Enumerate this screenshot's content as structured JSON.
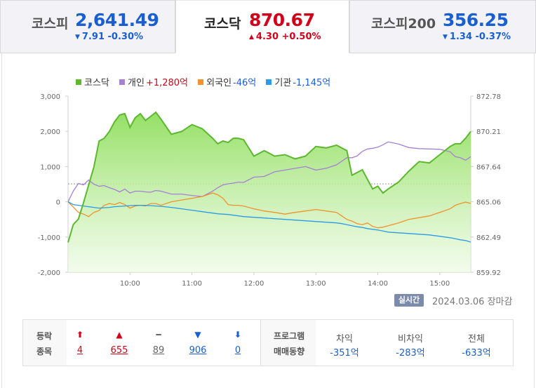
{
  "tabs": [
    {
      "name": "코스피",
      "value": "2,641.49",
      "change": "7.91",
      "change_pct": "-0.30%",
      "direction": "down",
      "arrow": "▼",
      "active": false
    },
    {
      "name": "코스닥",
      "value": "870.67",
      "change": "4.30",
      "change_pct": "+0.50%",
      "direction": "up",
      "arrow": "▲",
      "active": true
    },
    {
      "name": "코스피200",
      "value": "356.25",
      "change": "1.34",
      "change_pct": "-0.37%",
      "direction": "down",
      "arrow": "▼",
      "active": false
    }
  ],
  "legend": [
    {
      "label": "코스닥",
      "value": "",
      "color": "#5cb82e"
    },
    {
      "label": "개인",
      "value": "+1,280억",
      "color": "#a77fd6",
      "value_color": "#d0021b"
    },
    {
      "label": "외국인",
      "value": "-46억",
      "color": "#f0922d",
      "value_color": "#1a5fd1"
    },
    {
      "label": "기관",
      "value": "-1,145억",
      "color": "#2a9be8",
      "value_color": "#1a5fd1"
    }
  ],
  "realtime_badge": "실시간",
  "date_status": "2024.03.06 장마감",
  "chart_data": {
    "type": "area",
    "x_ticks": [
      "10:00",
      "11:00",
      "12:00",
      "13:00",
      "14:00",
      "15:00"
    ],
    "x_range": [
      "09:00",
      "15:30"
    ],
    "y_left": {
      "ticks": [
        "3,000",
        "2,000",
        "1,000",
        "0",
        "-1,000",
        "-2,000"
      ],
      "range": [
        -2000,
        3000
      ],
      "unit": "억"
    },
    "y_right": {
      "ticks": [
        "872.78",
        "870.21",
        "867.64",
        "865.06",
        "862.49",
        "859.92"
      ],
      "range": [
        859.92,
        872.78
      ]
    },
    "reference_line": {
      "axis": "right",
      "value": 866.37,
      "style": "dashed"
    },
    "times": [
      "09:00",
      "09:05",
      "09:10",
      "09:15",
      "09:20",
      "09:25",
      "09:30",
      "09:35",
      "09:40",
      "09:45",
      "09:50",
      "09:55",
      "10:00",
      "10:05",
      "10:10",
      "10:15",
      "10:20",
      "10:25",
      "10:30",
      "10:40",
      "10:50",
      "11:00",
      "11:10",
      "11:20",
      "11:25",
      "11:30",
      "11:35",
      "11:40",
      "11:45",
      "11:50",
      "12:00",
      "12:10",
      "12:20",
      "12:30",
      "12:40",
      "12:50",
      "13:00",
      "13:10",
      "13:20",
      "13:25",
      "13:30",
      "13:35",
      "13:40",
      "13:45",
      "13:50",
      "13:55",
      "14:00",
      "14:05",
      "14:10",
      "14:20",
      "14:30",
      "14:40",
      "14:50",
      "15:00",
      "15:10",
      "15:15",
      "15:20",
      "15:25",
      "15:30"
    ],
    "series": [
      {
        "name": "코스닥",
        "axis": "right",
        "color": "#5cb82e",
        "values": [
          862.1,
          863.4,
          863.8,
          865.0,
          866.3,
          867.6,
          869.5,
          869.7,
          870.2,
          870.9,
          871.4,
          871.5,
          870.5,
          871.2,
          871.5,
          871.0,
          871.3,
          871.6,
          871.1,
          870.0,
          870.2,
          870.7,
          870.4,
          869.7,
          869.3,
          869.5,
          869.4,
          869.7,
          869.7,
          869.6,
          868.4,
          868.8,
          868.4,
          868.5,
          868.2,
          868.4,
          869.1,
          869.0,
          869.2,
          869.0,
          868.8,
          867.0,
          867.2,
          867.4,
          866.7,
          866.0,
          866.2,
          865.7,
          866.0,
          866.5,
          867.3,
          868.0,
          867.9,
          868.5,
          869.1,
          869.3,
          869.3,
          869.7,
          870.2
        ]
      },
      {
        "name": "개인",
        "axis": "left",
        "color": "#a77fd6",
        "values": [
          0,
          300,
          520,
          480,
          620,
          500,
          440,
          460,
          400,
          350,
          280,
          360,
          250,
          300,
          300,
          280,
          270,
          320,
          300,
          220,
          220,
          180,
          150,
          300,
          400,
          480,
          510,
          530,
          560,
          550,
          700,
          720,
          850,
          900,
          950,
          1000,
          900,
          950,
          1050,
          1150,
          1250,
          1250,
          1300,
          1430,
          1500,
          1520,
          1550,
          1620,
          1700,
          1640,
          1540,
          1510,
          1500,
          1490,
          1420,
          1280,
          1250,
          1180,
          1280
        ]
      },
      {
        "name": "외국인",
        "axis": "left",
        "color": "#f0922d",
        "values": [
          0,
          -150,
          -300,
          -350,
          -420,
          -300,
          -250,
          -100,
          -50,
          -80,
          -20,
          -80,
          -180,
          -120,
          -100,
          -120,
          -50,
          -50,
          -100,
          0,
          50,
          100,
          150,
          250,
          200,
          100,
          -80,
          -100,
          -100,
          -120,
          -200,
          -260,
          -300,
          -350,
          -300,
          -260,
          -220,
          -260,
          -300,
          -400,
          -500,
          -550,
          -620,
          -650,
          -600,
          -700,
          -740,
          -720,
          -680,
          -600,
          -500,
          -450,
          -400,
          -300,
          -200,
          -100,
          -50,
          -10,
          -46
        ]
      },
      {
        "name": "기관",
        "axis": "left",
        "color": "#2a9be8",
        "values": [
          0,
          -80,
          -100,
          -120,
          -140,
          -160,
          -180,
          -170,
          -160,
          -140,
          -130,
          -120,
          -110,
          -100,
          -100,
          -100,
          -110,
          -120,
          -130,
          -160,
          -200,
          -240,
          -280,
          -320,
          -340,
          -350,
          -360,
          -380,
          -400,
          -420,
          -440,
          -460,
          -480,
          -500,
          -520,
          -540,
          -560,
          -580,
          -600,
          -620,
          -650,
          -680,
          -710,
          -730,
          -760,
          -780,
          -800,
          -830,
          -860,
          -880,
          -900,
          -920,
          -940,
          -980,
          -1020,
          -1050,
          -1080,
          -1100,
          -1145
        ]
      }
    ]
  },
  "breadth": {
    "header_top": "등락",
    "header_bottom": "종목",
    "items": [
      {
        "icon": "⬆",
        "value": "4",
        "color": "#d0021b",
        "name": "upper-limit"
      },
      {
        "icon": "▲",
        "value": "655",
        "color": "#d0021b",
        "name": "rising"
      },
      {
        "icon": "━",
        "value": "89",
        "color": "#666666",
        "name": "unchanged"
      },
      {
        "icon": "▼",
        "value": "906",
        "color": "#1a5fd1",
        "name": "falling"
      },
      {
        "icon": "⬇",
        "value": "0",
        "color": "#1a5fd1",
        "name": "lower-limit"
      }
    ]
  },
  "program": {
    "header_top": "프로그램",
    "header_bottom": "매매동향",
    "items": [
      {
        "label": "차익",
        "value": "-351억"
      },
      {
        "label": "비차익",
        "value": "-283억"
      },
      {
        "label": "전체",
        "value": "-633억"
      }
    ]
  }
}
